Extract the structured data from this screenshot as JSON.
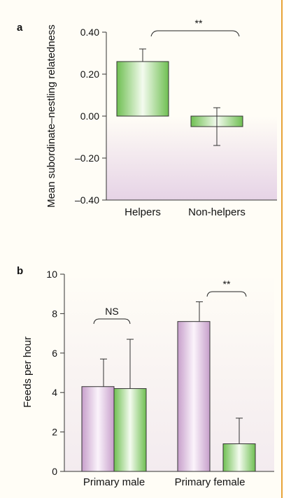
{
  "chart_data": [
    {
      "panel": "a",
      "type": "bar",
      "ylabel": "Mean subordinate–nestling relatedness",
      "categories": [
        "Helpers",
        "Non-helpers"
      ],
      "values": [
        0.26,
        -0.05
      ],
      "errors": [
        0.06,
        0.09
      ],
      "ylim": [
        -0.4,
        0.4
      ],
      "yticks": [
        "0.40",
        "0.20",
        "0.00",
        "–0.20",
        "–0.40"
      ],
      "ytick_values": [
        0.4,
        0.2,
        0.0,
        -0.2,
        -0.4
      ],
      "significance": "**",
      "colors": {
        "bar": "#6fbf52",
        "bar_light": "#f4fbef",
        "neg_bg": "#e6d3e6"
      }
    },
    {
      "panel": "b",
      "type": "bar",
      "ylabel": "Feeds per hour",
      "categories": [
        "Primary male",
        "Primary female"
      ],
      "series": [
        {
          "values": [
            4.3,
            7.6
          ],
          "errors": [
            1.4,
            1.0
          ],
          "color": "#c79fcb"
        },
        {
          "values": [
            4.2,
            1.4
          ],
          "errors": [
            2.5,
            1.3
          ],
          "color": "#6fbf52"
        }
      ],
      "ylim": [
        0,
        10
      ],
      "yticks": [
        "0",
        "2",
        "4",
        "6",
        "8",
        "10"
      ],
      "ytick_values": [
        0,
        2,
        4,
        6,
        8,
        10
      ],
      "significance": [
        "NS",
        "**"
      ]
    }
  ],
  "frame_color": "#e8a43a"
}
